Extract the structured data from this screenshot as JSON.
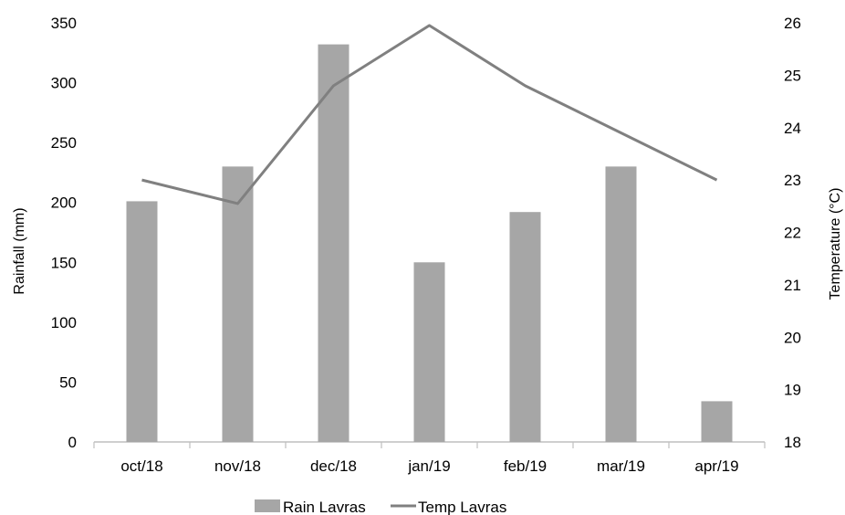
{
  "chart_data": {
    "type": "bar",
    "categories": [
      "oct/18",
      "nov/18",
      "dec/18",
      "jan/19",
      "feb/19",
      "mar/19",
      "apr/19"
    ],
    "series": [
      {
        "name": "Rain Lavras",
        "type": "bar",
        "axis": "left",
        "color": "#a6a6a6",
        "values": [
          201,
          230,
          332,
          150,
          192,
          230,
          34
        ]
      },
      {
        "name": "Temp Lavras",
        "type": "line",
        "axis": "right",
        "color": "#808080",
        "values": [
          23.0,
          22.55,
          24.8,
          25.95,
          24.8,
          23.9,
          23.0
        ]
      }
    ],
    "ylabel_left": "Rainfall (mm)",
    "ylabel_right": "Temperature (°C)",
    "ylim_left": [
      0,
      350
    ],
    "yticks_left": [
      "0",
      "50",
      "100",
      "150",
      "200",
      "250",
      "300",
      "350"
    ],
    "ylim_right": [
      18,
      26
    ],
    "yticks_right": [
      "18",
      "19",
      "20",
      "21",
      "22",
      "23",
      "24",
      "25",
      "26"
    ],
    "grid": false,
    "legend_position": "bottom"
  }
}
